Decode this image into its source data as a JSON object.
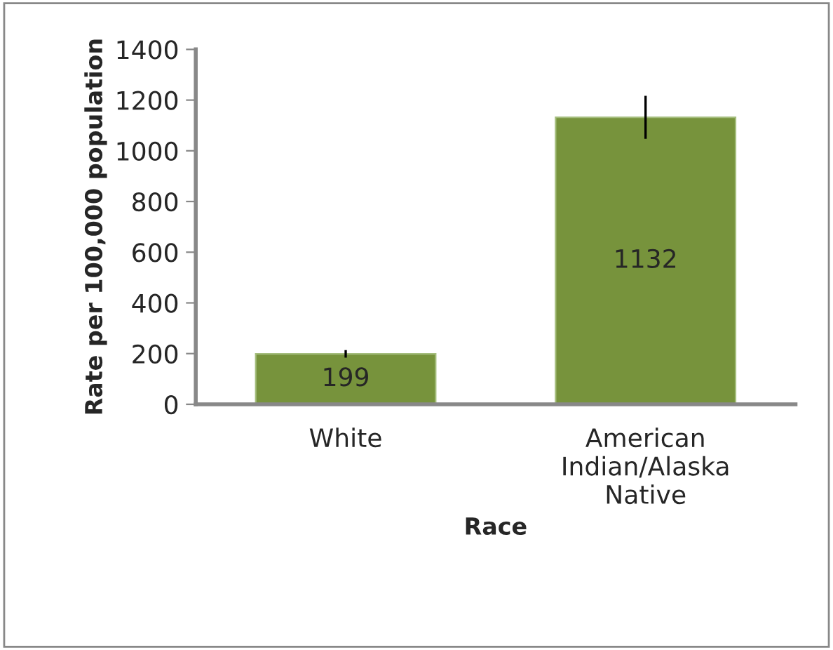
{
  "chart_data": {
    "type": "bar",
    "xlabel": "Race",
    "ylabel": "Rate per 100,000 population",
    "categories": [
      "White",
      "American\nIndian/Alaska\nNative"
    ],
    "values": [
      199,
      1132
    ],
    "errors": [
      15,
      85
    ],
    "color": "#77933c",
    "ylim": [
      0,
      1400
    ],
    "yticks": [
      0,
      200,
      400,
      600,
      800,
      1000,
      1200,
      1400
    ],
    "data_labels": true,
    "grid": false,
    "legend": false
  }
}
